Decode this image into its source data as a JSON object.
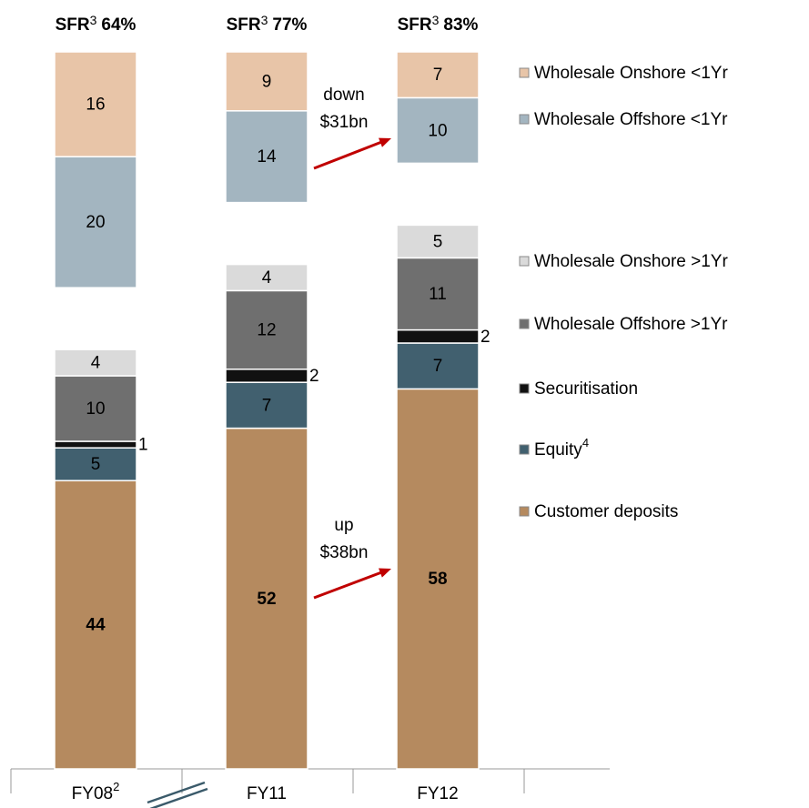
{
  "chart_data": {
    "type": "stacked-bar",
    "headers": [
      {
        "label": "SFR",
        "sup": "3",
        "ratio": "64%"
      },
      {
        "label": "SFR",
        "sup": "3",
        "ratio": "77%"
      },
      {
        "label": "SFR",
        "sup": "3",
        "ratio": "83%"
      }
    ],
    "categories": [
      {
        "label": "FY08",
        "sup": "2"
      },
      {
        "label": "FY11"
      },
      {
        "label": "FY12"
      }
    ],
    "series": [
      {
        "name": "Customer deposits",
        "color": "#b58a5f",
        "stack": "lower",
        "values": [
          44,
          52,
          58
        ]
      },
      {
        "name": "Equity",
        "sup": "4",
        "color": "#41606f",
        "stack": "lower",
        "values": [
          5,
          7,
          7
        ]
      },
      {
        "name": "Securitisation",
        "color": "#111111",
        "stack": "lower",
        "values": [
          1,
          2,
          2
        ]
      },
      {
        "name": "Wholesale Offshore >1Yr",
        "color": "#6f6f6f",
        "stack": "lower",
        "values": [
          10,
          12,
          11
        ]
      },
      {
        "name": "Wholesale Onshore >1Yr",
        "color": "#dadada",
        "stack": "lower",
        "values": [
          4,
          4,
          5
        ]
      },
      {
        "name": "Wholesale Offshore <1Yr",
        "color": "#a3b5c0",
        "stack": "upper",
        "values": [
          20,
          14,
          10
        ]
      },
      {
        "name": "Wholesale Onshore <1Yr",
        "color": "#e8c5a8",
        "stack": "upper",
        "values": [
          16,
          9,
          7
        ]
      }
    ],
    "annotations": [
      {
        "lines": [
          "down",
          "$31bn"
        ],
        "color": "#c00000"
      },
      {
        "lines": [
          "up",
          "$38bn"
        ],
        "color": "#c00000"
      }
    ]
  }
}
